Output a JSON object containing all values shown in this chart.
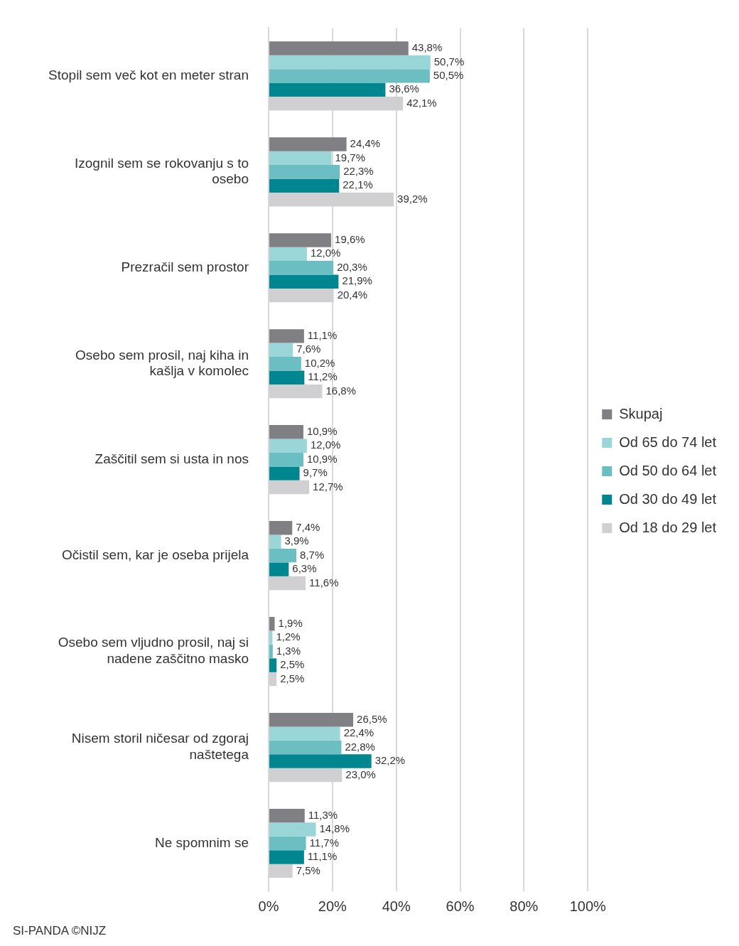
{
  "chart_data": {
    "type": "bar",
    "orientation": "horizontal",
    "categories": [
      "Stopil sem več kot en meter stran",
      "Izognil sem se rokovanju s to osebo",
      "Prezračil sem prostor",
      "Osebo sem prosil, naj kiha in kašlja v komolec",
      "Zaščitil sem si usta in nos",
      "Očistil sem, kar je oseba prijela",
      "Osebo sem vljudno prosil, naj si nadene zaščitno masko",
      "Nisem storil ničesar od zgoraj naštetega",
      "Ne spomnim se"
    ],
    "series": [
      {
        "name": "Skupaj",
        "color": "#7f7f84",
        "values": [
          43.8,
          24.4,
          19.6,
          11.1,
          10.9,
          7.4,
          1.9,
          26.5,
          11.3
        ],
        "value_labels": [
          "43,8%",
          "24,4%",
          "19,6%",
          "11,1%",
          "10,9%",
          "7,4%",
          "1,9%",
          "26,5%",
          "11,3%"
        ]
      },
      {
        "name": "Od 65 do 74 let",
        "color": "#9ad5d7",
        "values": [
          50.7,
          19.7,
          12.0,
          7.6,
          12.0,
          3.9,
          1.2,
          22.4,
          14.8
        ],
        "value_labels": [
          "50,7%",
          "19,7%",
          "12,0%",
          "7,6%",
          "12,0%",
          "3,9%",
          "1,2%",
          "22,4%",
          "14,8%"
        ]
      },
      {
        "name": "Od 50 do 64 let",
        "color": "#6bbec1",
        "values": [
          50.5,
          22.3,
          20.3,
          10.2,
          10.9,
          8.7,
          1.3,
          22.8,
          11.7
        ],
        "value_labels": [
          "50,5%",
          "22,3%",
          "20,3%",
          "10,2%",
          "10,9%",
          "8,7%",
          "1,3%",
          "22,8%",
          "11,7%"
        ]
      },
      {
        "name": "Od 30 do 49 let",
        "color": "#00868f",
        "values": [
          36.6,
          22.1,
          21.9,
          11.2,
          9.7,
          6.3,
          2.5,
          32.2,
          11.1
        ],
        "value_labels": [
          "36,6%",
          "22,1%",
          "21,9%",
          "11,2%",
          "9,7%",
          "6,3%",
          "2,5%",
          "32,2%",
          "11,1%"
        ]
      },
      {
        "name": "Od 18 do 29 let",
        "color": "#d0d0d2",
        "values": [
          42.1,
          39.2,
          20.4,
          16.8,
          12.7,
          11.6,
          2.5,
          23.0,
          7.5
        ],
        "value_labels": [
          "42,1%",
          "39,2%",
          "20,4%",
          "16,8%",
          "12,7%",
          "11,6%",
          "2,5%",
          "23,0%",
          "7,5%"
        ]
      }
    ],
    "xlim": [
      0,
      100
    ],
    "xticks": [
      {
        "value": 0,
        "label": "0%"
      },
      {
        "value": 20,
        "label": "20%"
      },
      {
        "value": 40,
        "label": "40%"
      },
      {
        "value": 60,
        "label": "60%"
      },
      {
        "value": 80,
        "label": "80%"
      },
      {
        "value": 100,
        "label": "100%"
      }
    ],
    "grid": "x",
    "legend": "right",
    "annotations": [
      "SI-PANDA ©NIJZ"
    ]
  }
}
